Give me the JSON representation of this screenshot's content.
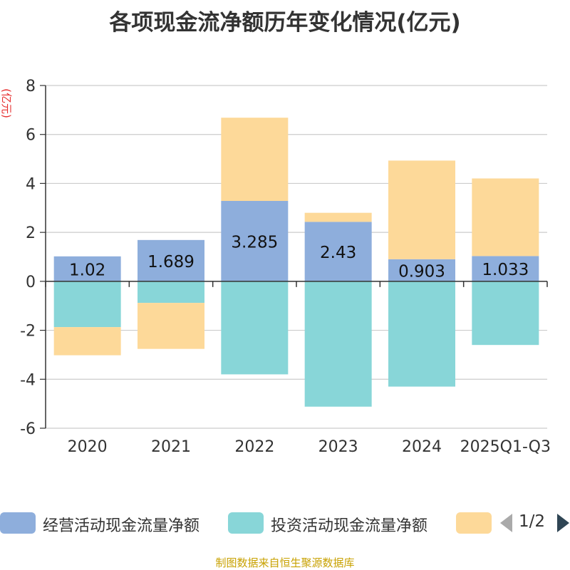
{
  "chart_data": {
    "type": "bar",
    "stacked": true,
    "title": "各项现金流净额历年变化情况(亿元)",
    "ylabel": "(亿元)",
    "xlabel": "",
    "ylim": [
      -6,
      8
    ],
    "yticks": [
      -6,
      -4,
      -2,
      0,
      2,
      4,
      6,
      8
    ],
    "categories": [
      "2020",
      "2021",
      "2022",
      "2023",
      "2024",
      "2025Q1-Q3"
    ],
    "series": [
      {
        "name": "经营活动现金流量净额",
        "color": "#8eaedc",
        "values": [
          1.02,
          1.689,
          3.285,
          2.43,
          0.903,
          1.033
        ],
        "labels": [
          "1.02",
          "1.689",
          "3.285",
          "2.43",
          "0.903",
          "1.033"
        ]
      },
      {
        "name": "投资活动现金流量净额",
        "color": "#88d6d8",
        "values": [
          -1.87,
          -0.88,
          -3.8,
          -5.12,
          -4.3,
          -2.6
        ]
      },
      {
        "name": "",
        "color": "#fdd999",
        "values": [
          -1.15,
          -1.88,
          3.4,
          0.37,
          4.03,
          3.17
        ]
      }
    ],
    "legend_position": "bottom",
    "grid": true
  },
  "legend": {
    "items": [
      {
        "label": "经营活动现金流量净额",
        "color": "#8eaedc"
      },
      {
        "label": "投资活动现金流量净额",
        "color": "#88d6d8"
      },
      {
        "label": "",
        "color": "#fdd999"
      }
    ],
    "page": "1/2"
  },
  "source": "制图数据来自恒生聚源数据库"
}
